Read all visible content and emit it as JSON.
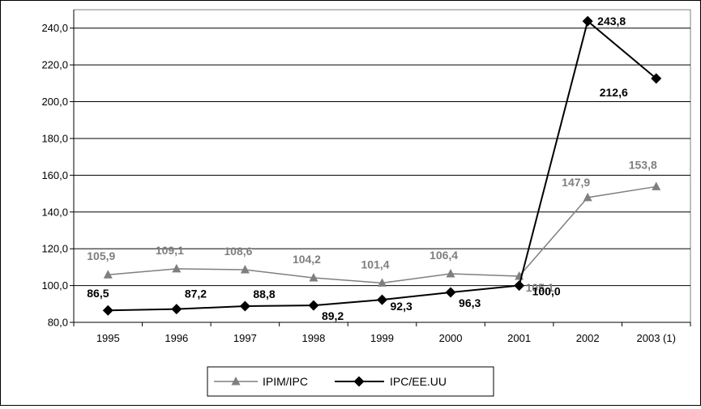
{
  "chart_data": {
    "type": "line",
    "categories": [
      "1995",
      "1996",
      "1997",
      "1998",
      "1999",
      "2000",
      "2001",
      "2002",
      "2003 (1)"
    ],
    "ylim": [
      80,
      250
    ],
    "y_ticks": [
      "80,0",
      "100,0",
      "120,0",
      "140,0",
      "160,0",
      "180,0",
      "200,0",
      "220,0",
      "240,0"
    ],
    "y_tick_values": [
      80,
      100,
      120,
      140,
      160,
      180,
      200,
      220,
      240
    ],
    "grid": "horizontal",
    "legend_position": "bottom",
    "series": [
      {
        "name": "IPIM/IPC",
        "values": [
          105.9,
          109.1,
          108.6,
          104.2,
          101.4,
          106.4,
          105.1,
          147.9,
          153.8
        ],
        "labels": [
          "105,9",
          "109,1",
          "108,6",
          "104,2",
          "101,4",
          "106,4",
          "105,1",
          "147,9",
          "153,8"
        ],
        "color": "#7f7f7f",
        "marker": "triangle"
      },
      {
        "name": "IPC/EE.UU",
        "values": [
          86.5,
          87.2,
          88.8,
          89.2,
          92.3,
          96.3,
          100.0,
          243.8,
          212.6
        ],
        "labels": [
          "86,5",
          "87,2",
          "88,8",
          "89,2",
          "92,3",
          "96,3",
          "100,0",
          "243,8",
          "212,6"
        ],
        "color": "#000000",
        "marker": "diamond"
      }
    ]
  }
}
